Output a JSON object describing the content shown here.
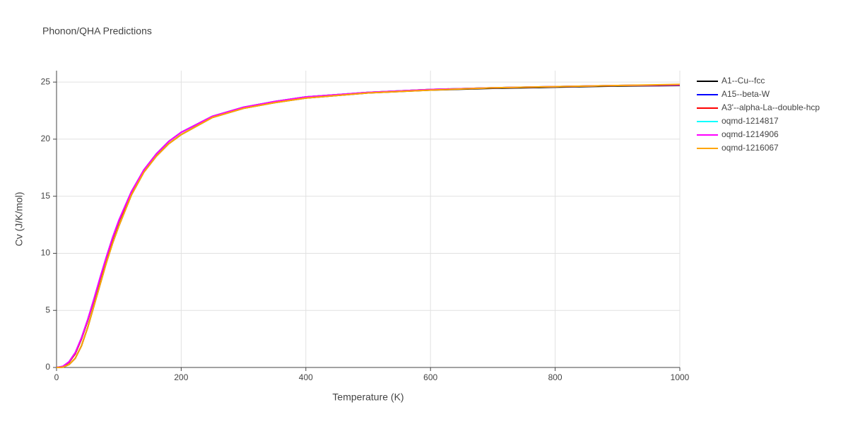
{
  "chart_data": {
    "type": "line",
    "title": "Phonon/QHA Predictions",
    "x_label": "Temperature (K)",
    "y_label": "Cv (J/K/mol)",
    "x": [
      0,
      10,
      20,
      30,
      40,
      50,
      60,
      70,
      80,
      90,
      100,
      120,
      140,
      160,
      180,
      200,
      250,
      300,
      350,
      400,
      500,
      600,
      700,
      800,
      900,
      1000
    ],
    "xlim": [
      0,
      1000
    ],
    "xticks": [
      0,
      200,
      400,
      600,
      800,
      1000
    ],
    "ylim": [
      0,
      26
    ],
    "yticks": [
      0,
      5,
      10,
      15,
      20,
      25
    ],
    "grid": true,
    "legend": "right",
    "series": [
      {
        "name": "A1--Cu--fcc",
        "color": "#000000",
        "values": [
          0,
          0.02,
          0.25,
          0.8,
          1.9,
          3.5,
          5.4,
          7.3,
          9.2,
          10.9,
          12.4,
          15.1,
          17.1,
          18.5,
          19.6,
          20.4,
          21.9,
          22.7,
          23.2,
          23.6,
          24.05,
          24.3,
          24.45,
          24.55,
          24.65,
          24.7
        ]
      },
      {
        "name": "A15--beta-W",
        "color": "#0000ff",
        "values": [
          0,
          0.08,
          0.45,
          1.2,
          2.5,
          4.1,
          5.9,
          7.8,
          9.6,
          11.3,
          12.8,
          15.3,
          17.3,
          18.7,
          19.8,
          20.6,
          22.0,
          22.8,
          23.3,
          23.7,
          24.1,
          24.35,
          24.5,
          24.6,
          24.7,
          24.75
        ]
      },
      {
        "name": "A3'--alpha-La--double-hcp",
        "color": "#ff0000",
        "values": [
          0,
          0.08,
          0.45,
          1.2,
          2.5,
          4.1,
          5.9,
          7.8,
          9.6,
          11.3,
          12.8,
          15.3,
          17.3,
          18.7,
          19.8,
          20.6,
          22.0,
          22.8,
          23.3,
          23.7,
          24.1,
          24.35,
          24.5,
          24.6,
          24.7,
          24.75
        ]
      },
      {
        "name": "oqmd-1214817",
        "color": "#00ffff",
        "values": [
          0,
          0.1,
          0.5,
          1.3,
          2.6,
          4.2,
          6.0,
          7.9,
          9.7,
          11.4,
          12.9,
          15.4,
          17.3,
          18.7,
          19.8,
          20.6,
          22.0,
          22.8,
          23.3,
          23.7,
          24.1,
          24.35,
          24.5,
          24.6,
          24.7,
          24.75
        ]
      },
      {
        "name": "oqmd-1214906",
        "color": "#ff00ff",
        "values": [
          0,
          0.1,
          0.5,
          1.3,
          2.6,
          4.2,
          6.0,
          7.9,
          9.7,
          11.4,
          12.9,
          15.4,
          17.3,
          18.7,
          19.8,
          20.6,
          22.0,
          22.8,
          23.3,
          23.7,
          24.1,
          24.35,
          24.5,
          24.6,
          24.7,
          24.75
        ]
      },
      {
        "name": "oqmd-1216067",
        "color": "#ffa500",
        "values": [
          0,
          0.02,
          0.25,
          0.8,
          1.9,
          3.5,
          5.4,
          7.3,
          9.2,
          10.9,
          12.4,
          15.1,
          17.1,
          18.5,
          19.6,
          20.4,
          21.9,
          22.7,
          23.2,
          23.6,
          24.05,
          24.3,
          24.5,
          24.6,
          24.7,
          24.8
        ]
      }
    ]
  }
}
